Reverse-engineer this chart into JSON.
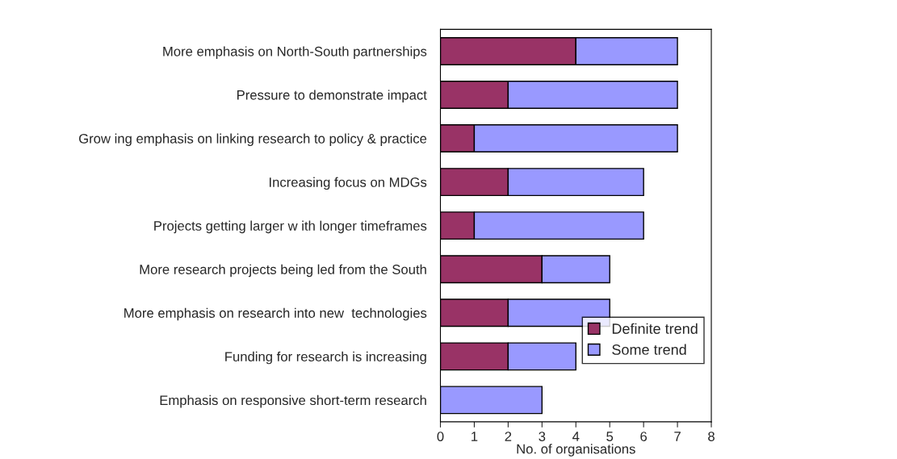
{
  "chart_data": {
    "type": "bar",
    "orientation": "horizontal",
    "stacked": true,
    "xlabel": "No. of organisations",
    "categories": [
      "More emphasis on North-South partnerships",
      "Pressure to demonstrate impact",
      "Grow ing emphasis on linking research to policy & practice",
      "Increasing focus on MDGs",
      "Projects getting larger w ith longer timeframes",
      "More research projects being led from the South",
      "More emphasis on research into new  technologies",
      "Funding for research is increasing",
      "Emphasis on responsive short-term research"
    ],
    "series": [
      {
        "name": "Definite trend",
        "color": "#993366",
        "values": [
          4,
          2,
          1,
          2,
          1,
          3,
          2,
          2,
          0
        ]
      },
      {
        "name": "Some trend",
        "color": "#9999ff",
        "values": [
          3,
          5,
          6,
          4,
          5,
          2,
          3,
          2,
          3
        ]
      }
    ],
    "xlim": [
      0,
      8
    ],
    "xticks": [
      0,
      1,
      2,
      3,
      4,
      5,
      6,
      7,
      8
    ],
    "grid": false,
    "legend": "bottom right"
  }
}
